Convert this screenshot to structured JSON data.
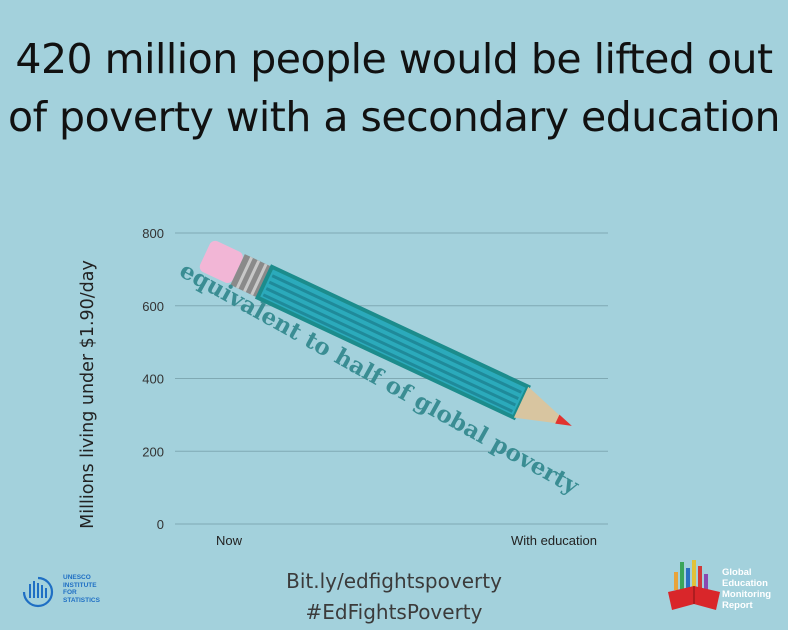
{
  "headline": {
    "line1": "420 million people would be lifted out",
    "line2": "of poverty with a secondary education"
  },
  "chart_data": {
    "type": "line",
    "title": "",
    "xlabel": "",
    "ylabel": "Millions living under $1.90/day",
    "categories": [
      "Now",
      "With education"
    ],
    "series": [
      {
        "values": [
          780,
          360
        ]
      }
    ],
    "ylim": [
      0,
      800
    ],
    "yticks": [
      0,
      200,
      400,
      600,
      800
    ],
    "grid": true,
    "annotation": "equivalent to half of global poverty",
    "colors": {
      "pencil_body": "#2baabb",
      "pencil_stripe": "#1f8a9a",
      "eraser": "#f2b6d6",
      "annotation": "#3a8d93",
      "grid": "#7fa9b3"
    }
  },
  "footer": {
    "link": "Bit.ly/edfightspoverty",
    "hashtag": "#EdFightsPoverty"
  },
  "logos": {
    "uis": {
      "lines": [
        "UNESCO",
        "INSTITUTE",
        "FOR",
        "STATISTICS"
      ],
      "color": "#1f6fc4"
    },
    "gem": {
      "lines": [
        "Global",
        "Education",
        "Monitoring",
        "Report"
      ]
    }
  }
}
